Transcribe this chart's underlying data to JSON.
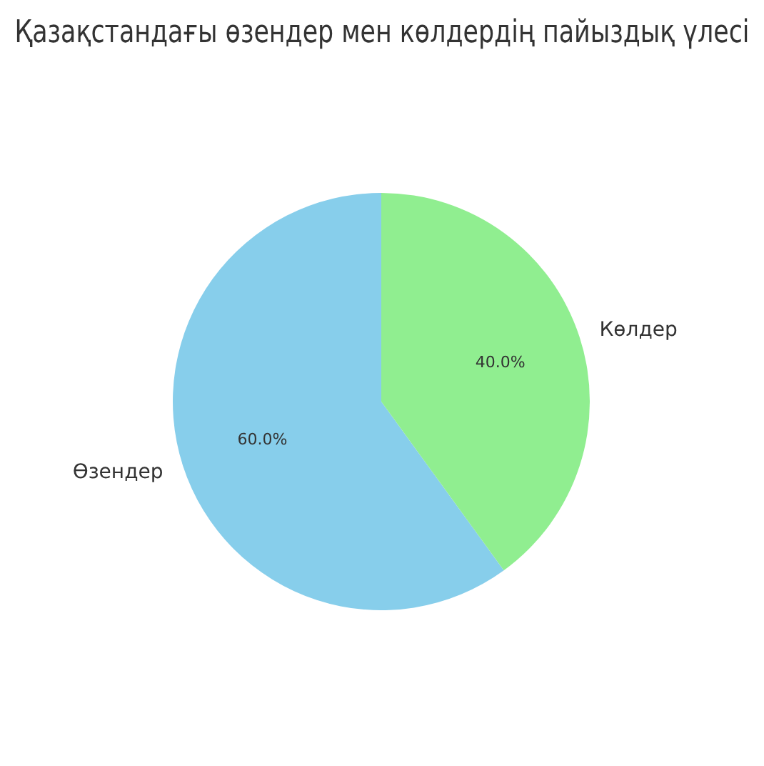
{
  "chart_data": {
    "type": "pie",
    "title": "Қазақстандағы өзендер мен көлдердің пайыздық үлесі",
    "categories": [
      "Өзендер",
      "Көлдер"
    ],
    "values": [
      60,
      40
    ],
    "colors": [
      "#87ceeb",
      "#90ee90"
    ],
    "value_labels": [
      "60.0%",
      "40.0%"
    ],
    "legend": false
  }
}
